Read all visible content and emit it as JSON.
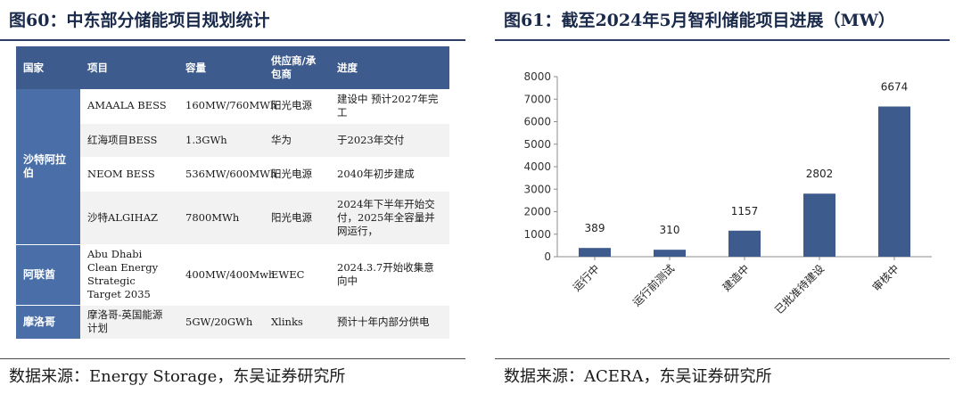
{
  "left": {
    "title": "图60：中东部分储能项目规划统计",
    "source": "数据来源：Energy Storage，东吴证券研究所",
    "table": {
      "headers": [
        "国家",
        "项目",
        "容量",
        "供应商/承包商",
        "进度"
      ],
      "groups": [
        {
          "country": "沙特阿拉伯",
          "rows": [
            {
              "project": "AMAALA BESS",
              "capacity": "160MW/760MWh",
              "supplier": "阳光电源",
              "progress": "建设中 预计2027年完工"
            },
            {
              "project": "红海项目BESS",
              "capacity": "1.3GWh",
              "supplier": "华为",
              "progress": "于2023年交付"
            },
            {
              "project": "NEOM BESS",
              "capacity": "536MW/600MWh",
              "supplier": "阳光电源",
              "progress": "2040年初步建成"
            },
            {
              "project": "沙特ALGIHAZ",
              "capacity": "7800MWh",
              "supplier": "阳光电源",
              "progress": "2024年下半年开始交付，2025年全容量并网运行，"
            }
          ]
        },
        {
          "country": "阿联酋",
          "rows": [
            {
              "project": "Abu Dhabi Clean Energy Strategic Target 2035",
              "capacity": "400MW/400Mwh",
              "supplier": "EWEC",
              "progress": "2024.3.7开始收集意向中"
            }
          ]
        },
        {
          "country": "摩洛哥",
          "rows": [
            {
              "project": "摩洛哥-英国能源计划",
              "capacity": "5GW/20GWh",
              "supplier": "Xlinks",
              "progress": "预计十年内部分供电"
            }
          ]
        }
      ]
    }
  },
  "right": {
    "title": "图61：截至2024年5月智利储能项目进展（MW）",
    "source": "数据来源：ACERA，东吴证券研究所",
    "chart_data": {
      "type": "bar",
      "categories": [
        "运行中",
        "运行前测试",
        "建造中",
        "已批准待建设",
        "审核中"
      ],
      "values": [
        389,
        310,
        1157,
        2802,
        6674
      ],
      "ylim": [
        0,
        8000
      ],
      "yticks": [
        0,
        1000,
        2000,
        3000,
        4000,
        5000,
        6000,
        7000,
        8000
      ],
      "grid": false,
      "legend": "none",
      "bar_color": "#3e5b8e"
    }
  }
}
